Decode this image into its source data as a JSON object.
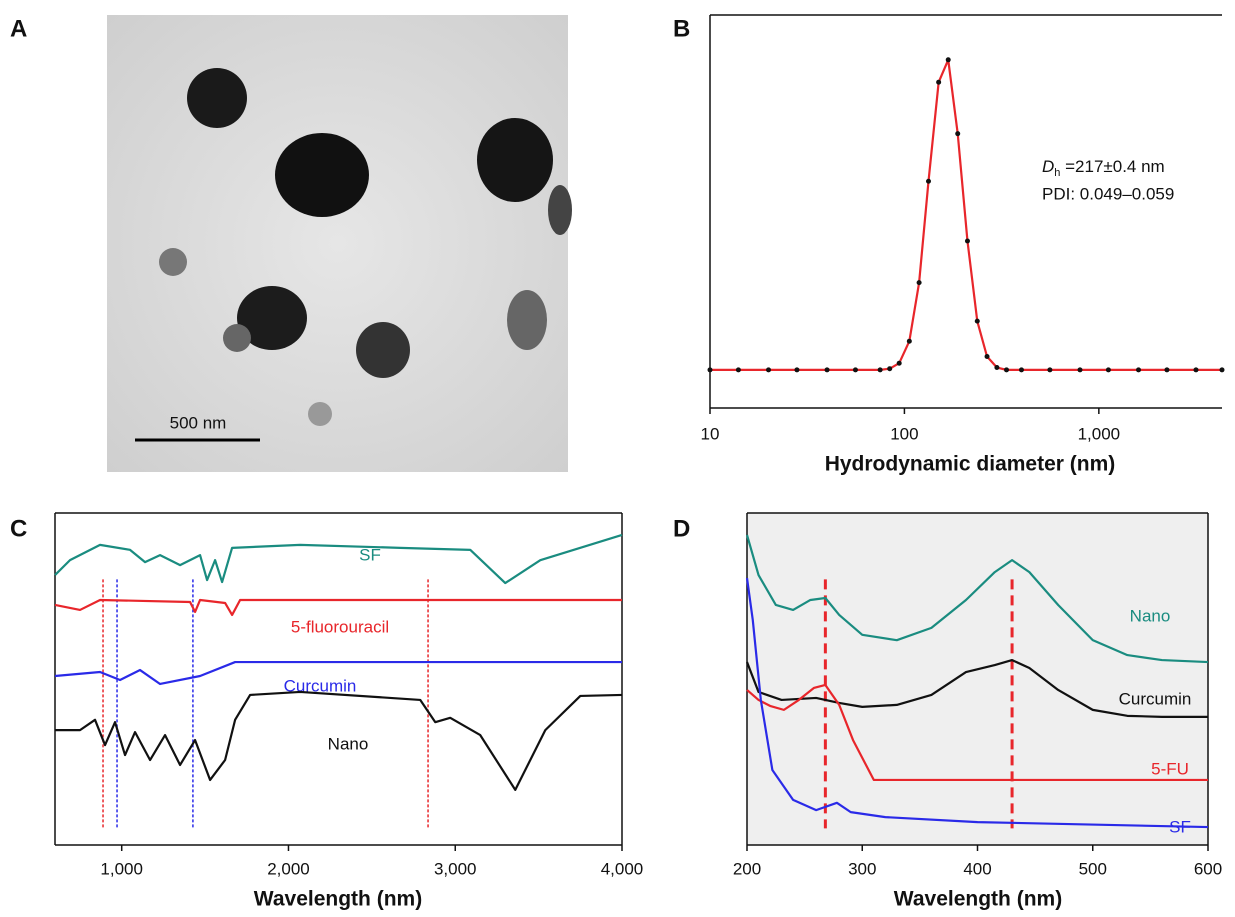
{
  "image_panel": {
    "panel_label": "A",
    "scale_bar": "500 nm"
  },
  "chart_data": [
    {
      "type": "line",
      "panel_label": "B",
      "x_label": "Hydrodynamic diameter (nm)",
      "xlog": true,
      "xlim": [
        10,
        4300
      ],
      "ylim": [
        0,
        100
      ],
      "xticks": [
        10,
        100,
        {
          "value": 1000,
          "label": "1,000"
        }
      ],
      "markers": true,
      "annotation": {
        "symbol": "D",
        "subscript": "h",
        "text": " =217±0.4 nm",
        "line2": "PDI: 0.049–0.059"
      },
      "x": [
        10,
        14,
        20,
        28,
        40,
        56,
        75,
        84,
        94,
        106,
        119,
        133,
        150,
        168,
        188,
        211,
        237,
        266,
        299,
        335,
        400,
        560,
        800,
        1120,
        1600,
        2240,
        3160,
        4300
      ],
      "series": [
        {
          "color": "#e8262b",
          "values": [
            9.7,
            9.7,
            9.7,
            9.7,
            9.7,
            9.7,
            9.7,
            10.0,
            11.4,
            17.0,
            31.9,
            57.7,
            82.9,
            88.6,
            69.8,
            42.5,
            22.1,
            13.1,
            10.3,
            9.7,
            9.7,
            9.7,
            9.7,
            9.7,
            9.7,
            9.7,
            9.7,
            9.7
          ]
        }
      ]
    },
    {
      "type": "line",
      "panel_label": "C",
      "x_label": "Wavelength (nm)",
      "xlim": [
        600,
        4000
      ],
      "ylim": [
        0,
        100
      ],
      "xticks": [
        {
          "value": 1000,
          "label": "1,000"
        },
        {
          "value": 2000,
          "label": "2,000"
        },
        {
          "value": 3000,
          "label": "3,000"
        },
        {
          "value": 4000,
          "label": "4,000"
        }
      ],
      "reference_lines": [
        {
          "x": 888,
          "color": "#e8262b"
        },
        {
          "x": 2837,
          "color": "#e8262b"
        },
        {
          "x": 972,
          "color": "#2a2ae8"
        },
        {
          "x": 1427,
          "color": "#2a2ae8"
        }
      ],
      "series": [
        {
          "name": "SF",
          "color": "#1a8c80",
          "x": [
            600,
            690,
            870,
            1050,
            1140,
            1230,
            1350,
            1470,
            1512,
            1560,
            1602,
            1662,
            2070,
            2670,
            3090,
            3300,
            3510,
            4000
          ],
          "values": [
            81.3,
            85.8,
            90.4,
            88.9,
            85.2,
            87.3,
            84.3,
            87.3,
            79.8,
            85.8,
            79.2,
            89.5,
            90.4,
            89.5,
            88.9,
            78.9,
            85.8,
            93.4
          ]
        },
        {
          "name": "5-fluorouracil",
          "color": "#e8262b",
          "x": [
            600,
            750,
            870,
            1410,
            1440,
            1470,
            1620,
            1662,
            1710,
            4000
          ],
          "values": [
            72.3,
            70.8,
            73.8,
            73.2,
            70.2,
            73.8,
            72.9,
            69.3,
            73.8,
            73.8
          ]
        },
        {
          "name": "Curcumin",
          "color": "#2a2ae8",
          "x": [
            600,
            870,
            990,
            1110,
            1230,
            1470,
            1680,
            4000
          ],
          "values": [
            50.9,
            52.1,
            49.7,
            52.7,
            48.5,
            50.9,
            55.1,
            55.1
          ]
        },
        {
          "name": "Nano",
          "color": "#111111",
          "x": [
            600,
            750,
            840,
            900,
            960,
            1020,
            1080,
            1170,
            1260,
            1350,
            1440,
            1530,
            1620,
            1680,
            1770,
            2070,
            2790,
            2880,
            2970,
            3150,
            3360,
            3540,
            3750,
            4000
          ],
          "values": [
            34.6,
            34.6,
            37.7,
            30.1,
            37.0,
            27.1,
            34.0,
            25.6,
            33.1,
            24.1,
            31.6,
            19.6,
            25.6,
            37.7,
            45.2,
            46.1,
            43.7,
            37.0,
            38.3,
            33.1,
            16.6,
            34.6,
            44.9,
            45.2
          ]
        }
      ]
    },
    {
      "type": "line",
      "panel_label": "D",
      "x_label": "Wavelength (nm)",
      "xlim": [
        200,
        600
      ],
      "ylim": [
        0,
        100
      ],
      "xticks": [
        200,
        300,
        400,
        500,
        600
      ],
      "reference_lines": [
        {
          "x": 268,
          "color": "#e8262b"
        },
        {
          "x": 430,
          "color": "#e8262b"
        }
      ],
      "series": [
        {
          "name": "Nano",
          "color": "#1a8c80",
          "x": [
            200,
            210,
            225,
            240,
            255,
            268,
            280,
            300,
            330,
            360,
            390,
            415,
            430,
            445,
            470,
            500,
            530,
            560,
            600
          ],
          "values": [
            93.4,
            81.3,
            72.3,
            70.8,
            73.8,
            74.4,
            69.3,
            63.3,
            61.7,
            65.4,
            73.8,
            82.2,
            85.8,
            82.2,
            72.3,
            61.7,
            57.2,
            55.7,
            55.1
          ]
        },
        {
          "name": "Curcumin",
          "color": "#111111",
          "x": [
            200,
            210,
            230,
            260,
            280,
            300,
            330,
            360,
            390,
            415,
            430,
            445,
            470,
            500,
            530,
            560,
            600
          ],
          "values": [
            55.1,
            46.1,
            43.7,
            44.3,
            42.8,
            41.6,
            42.2,
            45.2,
            52.1,
            54.2,
            55.7,
            53.3,
            46.7,
            40.7,
            38.9,
            38.6,
            38.6
          ]
        },
        {
          "name": "5-FU",
          "color": "#e8262b",
          "x": [
            200,
            210,
            220,
            232,
            245,
            258,
            268,
            280,
            292,
            310,
            350,
            600
          ],
          "values": [
            46.7,
            43.7,
            41.9,
            40.7,
            43.7,
            47.3,
            48.2,
            42.2,
            31.6,
            19.6,
            19.6,
            19.6
          ]
        },
        {
          "name": "SF",
          "color": "#2a2ae8",
          "x": [
            200,
            205,
            212,
            222,
            240,
            260,
            278,
            290,
            320,
            400,
            600
          ],
          "values": [
            80.4,
            67.8,
            43.7,
            22.6,
            13.6,
            10.5,
            12.7,
            9.9,
            8.4,
            6.9,
            5.4
          ]
        }
      ]
    }
  ]
}
